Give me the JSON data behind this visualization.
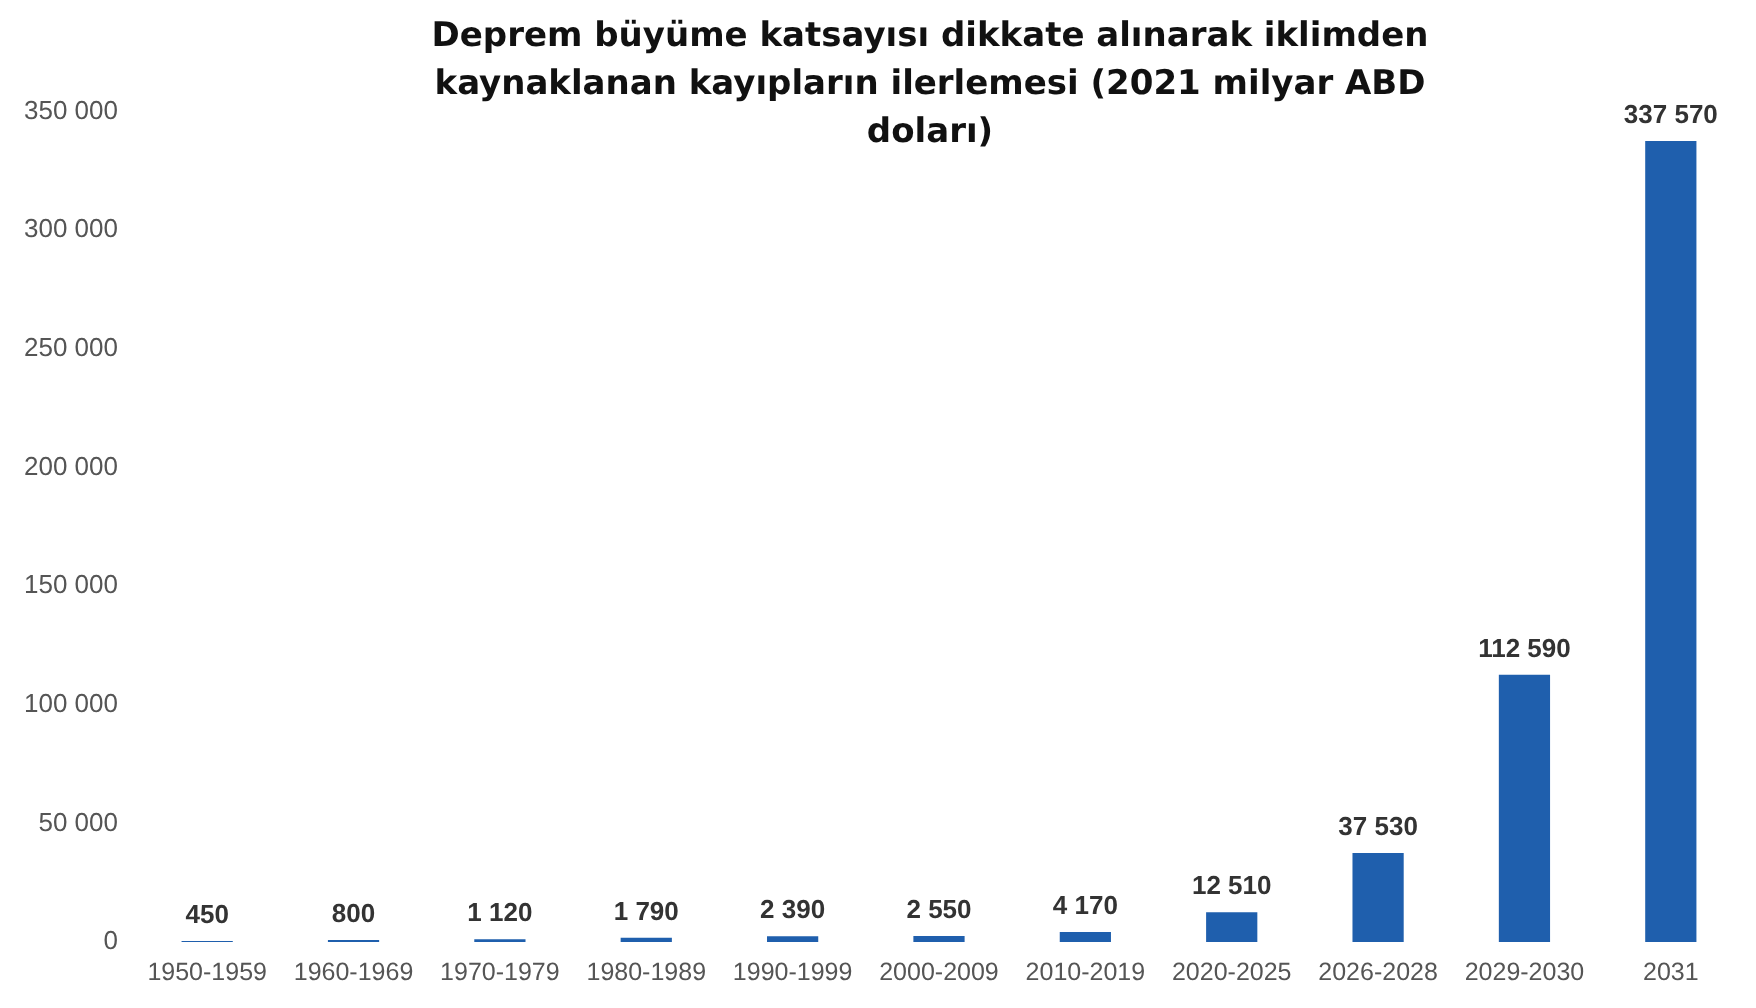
{
  "chart_data": {
    "type": "bar",
    "title": "Deprem büyüme katsayısı dikkate alınarak iklimden kaynaklanan kayıpların ilerlemesi (2021 milyar ABD doları)",
    "categories": [
      "1950-1959",
      "1960-1969",
      "1970-1979",
      "1980-1989",
      "1990-1999",
      "2000-2009",
      "2010-2019",
      "2020-2025",
      "2026-2028",
      "2029-2030",
      "2031"
    ],
    "values": [
      450,
      800,
      1120,
      1790,
      2390,
      2550,
      4170,
      12510,
      37530,
      112590,
      337570
    ],
    "value_labels": [
      "450",
      "800",
      "1 120",
      "1 790",
      "2 390",
      "2 550",
      "4 170",
      "12 510",
      "37 530",
      "112 590",
      "337 570"
    ],
    "color": "#1f5fad",
    "ylim": [
      0,
      350000
    ],
    "yticks": [
      {
        "value": 0,
        "label": "0"
      },
      {
        "value": 50000,
        "label": "50 000"
      },
      {
        "value": 100000,
        "label": "100 000"
      },
      {
        "value": 150000,
        "label": "150 000"
      },
      {
        "value": 200000,
        "label": "200 000"
      },
      {
        "value": 250000,
        "label": "250 000"
      },
      {
        "value": 300000,
        "label": "300 000"
      },
      {
        "value": 350000,
        "label": "350 000"
      }
    ],
    "grid": false,
    "legend": false
  }
}
